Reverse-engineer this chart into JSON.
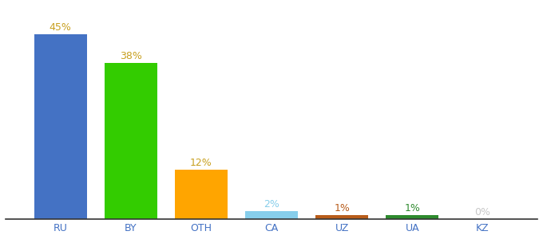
{
  "categories": [
    "RU",
    "BY",
    "OTH",
    "CA",
    "UZ",
    "UA",
    "KZ"
  ],
  "values": [
    45,
    38,
    12,
    2,
    1,
    1,
    0
  ],
  "bar_colors": [
    "#4472c4",
    "#33cc00",
    "#ffa500",
    "#87ceeb",
    "#b85c1a",
    "#2e8b2e",
    "#c8c8c8"
  ],
  "label_colors": [
    "#c8a020",
    "#c8a020",
    "#c8a020",
    "#87ceeb",
    "#b85c1a",
    "#2e8b2e",
    "#c8c8c8"
  ],
  "labels": [
    "45%",
    "38%",
    "12%",
    "2%",
    "1%",
    "1%",
    "0%"
  ],
  "title": "",
  "ylim": [
    0,
    52
  ],
  "xlabel_color": "#4472c4",
  "background_color": "#ffffff",
  "bar_width": 0.75
}
